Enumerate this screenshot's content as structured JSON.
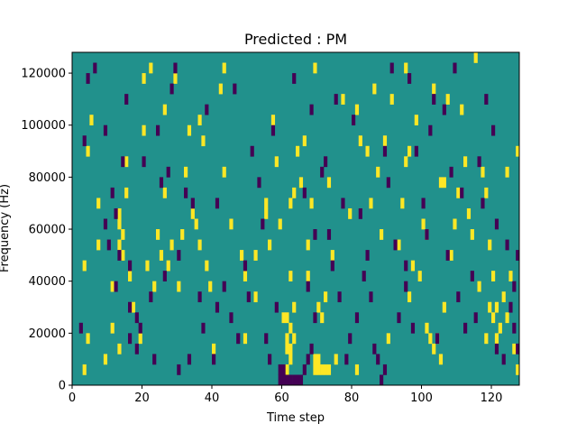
{
  "chart_data": {
    "type": "heatmap",
    "title": "Predicted : PM",
    "xlabel": "Time step",
    "ylabel": "Frequency (Hz)",
    "xlim": [
      0,
      128
    ],
    "ylim": [
      0,
      128000
    ],
    "xticks": [
      0,
      20,
      40,
      60,
      80,
      100,
      120
    ],
    "yticks": [
      0,
      20000,
      40000,
      60000,
      80000,
      100000,
      120000
    ],
    "xtick_labels": [
      "0",
      "20",
      "40",
      "60",
      "80",
      "100",
      "120"
    ],
    "ytick_labels": [
      "0",
      "20000",
      "40000",
      "60000",
      "80000",
      "100000",
      "120000"
    ],
    "n_time_steps": 128,
    "n_frequency_bins": 32,
    "bin_height_hz": 4000,
    "background_value": 0,
    "colormap": "viridis",
    "colors": {
      "low": "#440154",
      "mid": "#21918c",
      "high": "#fde725"
    },
    "high_cells": [
      [
        3,
        1
      ],
      [
        4,
        4
      ],
      [
        4,
        22
      ],
      [
        5,
        25
      ],
      [
        11,
        9
      ],
      [
        13,
        3
      ],
      [
        13,
        13
      ],
      [
        13,
        15
      ],
      [
        13,
        16
      ],
      [
        14,
        14
      ],
      [
        14,
        12
      ],
      [
        15,
        18
      ],
      [
        17,
        7
      ],
      [
        19,
        4
      ],
      [
        26,
        18
      ],
      [
        27,
        11
      ],
      [
        28,
        13
      ],
      [
        30,
        9
      ],
      [
        33,
        24
      ],
      [
        35,
        15
      ],
      [
        36,
        13
      ],
      [
        38,
        11
      ],
      [
        39,
        9
      ],
      [
        40,
        3
      ],
      [
        43,
        20
      ],
      [
        45,
        15
      ],
      [
        49,
        4
      ],
      [
        55,
        16
      ],
      [
        61,
        1
      ],
      [
        62,
        2
      ],
      [
        61,
        3
      ],
      [
        62,
        3
      ],
      [
        61,
        4
      ],
      [
        62,
        5
      ],
      [
        60,
        6
      ],
      [
        61,
        6
      ],
      [
        63,
        4
      ],
      [
        63,
        7
      ],
      [
        62,
        10
      ],
      [
        67,
        10
      ],
      [
        69,
        1
      ],
      [
        70,
        1
      ],
      [
        71,
        1
      ],
      [
        72,
        1
      ],
      [
        73,
        1
      ],
      [
        69,
        2
      ],
      [
        70,
        2
      ],
      [
        71,
        6
      ],
      [
        72,
        8
      ],
      [
        74,
        12
      ],
      [
        75,
        2
      ],
      [
        81,
        1
      ],
      [
        85,
        17
      ],
      [
        88,
        14
      ],
      [
        90,
        4
      ],
      [
        95,
        21
      ],
      [
        96,
        8
      ],
      [
        97,
        11
      ],
      [
        99,
        10
      ],
      [
        101,
        5
      ],
      [
        102,
        4
      ],
      [
        103,
        3
      ],
      [
        104,
        4
      ],
      [
        105,
        2
      ],
      [
        106,
        7
      ],
      [
        108,
        12
      ],
      [
        109,
        15
      ],
      [
        113,
        16
      ],
      [
        116,
        9
      ],
      [
        118,
        18
      ],
      [
        119,
        7
      ],
      [
        120,
        6
      ],
      [
        121,
        7
      ],
      [
        121,
        4
      ],
      [
        122,
        5
      ],
      [
        124,
        6
      ],
      [
        127,
        1
      ],
      [
        126,
        3
      ],
      [
        125,
        10
      ],
      [
        3,
        11
      ],
      [
        7,
        13
      ],
      [
        7,
        17
      ],
      [
        15,
        21
      ],
      [
        20,
        24
      ],
      [
        20,
        29
      ],
      [
        22,
        30
      ],
      [
        24,
        14
      ],
      [
        26,
        26
      ],
      [
        29,
        29
      ],
      [
        32,
        20
      ],
      [
        36,
        25
      ],
      [
        43,
        30
      ],
      [
        49,
        10
      ],
      [
        52,
        12
      ],
      [
        55,
        17
      ],
      [
        57,
        25
      ],
      [
        58,
        21
      ],
      [
        62,
        17
      ],
      [
        65,
        19
      ],
      [
        66,
        23
      ],
      [
        68,
        17
      ],
      [
        69,
        30
      ],
      [
        70,
        7
      ],
      [
        77,
        27
      ],
      [
        81,
        26
      ],
      [
        84,
        22
      ],
      [
        87,
        20
      ],
      [
        89,
        23
      ],
      [
        91,
        27
      ],
      [
        93,
        13
      ],
      [
        95,
        30
      ],
      [
        96,
        22
      ],
      [
        98,
        25
      ],
      [
        100,
        15
      ],
      [
        101,
        14
      ],
      [
        103,
        28
      ],
      [
        106,
        19
      ],
      [
        107,
        27
      ],
      [
        110,
        18
      ],
      [
        112,
        21
      ],
      [
        115,
        31
      ],
      [
        117,
        20
      ],
      [
        119,
        13
      ],
      [
        123,
        8
      ],
      [
        127,
        22
      ],
      [
        9,
        2
      ],
      [
        11,
        5
      ],
      [
        16,
        10
      ],
      [
        21,
        11
      ],
      [
        23,
        9
      ],
      [
        25,
        12
      ],
      [
        31,
        14
      ],
      [
        34,
        16
      ],
      [
        37,
        23
      ],
      [
        42,
        28
      ],
      [
        48,
        12
      ],
      [
        52,
        8
      ],
      [
        56,
        13
      ],
      [
        59,
        15
      ],
      [
        63,
        18
      ],
      [
        64,
        22
      ],
      [
        67,
        13
      ],
      [
        73,
        19
      ],
      [
        79,
        16
      ],
      [
        82,
        23
      ],
      [
        86,
        28
      ],
      [
        94,
        17
      ],
      [
        105,
        19
      ],
      [
        111,
        26
      ],
      [
        114,
        14
      ],
      [
        118,
        4
      ],
      [
        120,
        10
      ],
      [
        124,
        20
      ]
    ],
    "low_cells": [
      [
        4,
        29
      ],
      [
        9,
        24
      ],
      [
        11,
        18
      ],
      [
        12,
        9
      ],
      [
        12,
        16
      ],
      [
        14,
        21
      ],
      [
        16,
        4
      ],
      [
        16,
        7
      ],
      [
        16,
        11
      ],
      [
        18,
        6
      ],
      [
        19,
        5
      ],
      [
        22,
        8
      ],
      [
        23,
        2
      ],
      [
        25,
        19
      ],
      [
        27,
        20
      ],
      [
        29,
        30
      ],
      [
        33,
        2
      ],
      [
        36,
        8
      ],
      [
        37,
        5
      ],
      [
        40,
        2
      ],
      [
        41,
        7
      ],
      [
        41,
        17
      ],
      [
        43,
        9
      ],
      [
        47,
        4
      ],
      [
        49,
        11
      ],
      [
        50,
        8
      ],
      [
        54,
        15
      ],
      [
        56,
        2
      ],
      [
        59,
        0
      ],
      [
        60,
        0
      ],
      [
        61,
        0
      ],
      [
        62,
        0
      ],
      [
        63,
        0
      ],
      [
        64,
        0
      ],
      [
        65,
        0
      ],
      [
        59,
        1
      ],
      [
        60,
        1
      ],
      [
        66,
        1
      ],
      [
        67,
        2
      ],
      [
        68,
        3
      ],
      [
        67,
        9
      ],
      [
        69,
        6
      ],
      [
        73,
        14
      ],
      [
        76,
        8
      ],
      [
        77,
        17
      ],
      [
        78,
        2
      ],
      [
        81,
        6
      ],
      [
        83,
        10
      ],
      [
        84,
        12
      ],
      [
        86,
        3
      ],
      [
        87,
        2
      ],
      [
        88,
        0
      ],
      [
        89,
        1
      ],
      [
        89,
        22
      ],
      [
        92,
        13
      ],
      [
        93,
        6
      ],
      [
        97,
        5
      ],
      [
        100,
        17
      ],
      [
        101,
        14
      ],
      [
        102,
        24
      ],
      [
        106,
        26
      ],
      [
        108,
        20
      ],
      [
        110,
        8
      ],
      [
        111,
        18
      ],
      [
        112,
        5
      ],
      [
        115,
        6
      ],
      [
        117,
        17
      ],
      [
        121,
        3
      ],
      [
        123,
        2
      ],
      [
        125,
        7
      ],
      [
        126,
        5
      ],
      [
        127,
        3
      ],
      [
        126,
        9
      ],
      [
        127,
        12
      ],
      [
        9,
        15
      ],
      [
        13,
        12
      ],
      [
        20,
        21
      ],
      [
        24,
        24
      ],
      [
        28,
        28
      ],
      [
        32,
        18
      ],
      [
        38,
        26
      ],
      [
        46,
        28
      ],
      [
        51,
        22
      ],
      [
        57,
        24
      ],
      [
        63,
        29
      ],
      [
        69,
        14
      ],
      [
        72,
        21
      ],
      [
        75,
        27
      ],
      [
        80,
        25
      ],
      [
        82,
        16
      ],
      [
        91,
        30
      ],
      [
        95,
        11
      ],
      [
        98,
        22
      ],
      [
        103,
        27
      ],
      [
        107,
        12
      ],
      [
        114,
        10
      ],
      [
        118,
        27
      ],
      [
        121,
        15
      ],
      [
        3,
        23
      ],
      [
        6,
        30
      ],
      [
        10,
        13
      ],
      [
        18,
        3
      ],
      [
        26,
        10
      ],
      [
        30,
        12
      ],
      [
        34,
        17
      ],
      [
        45,
        6
      ],
      [
        53,
        19
      ],
      [
        58,
        7
      ],
      [
        66,
        18
      ],
      [
        71,
        20
      ],
      [
        74,
        11
      ],
      [
        85,
        8
      ],
      [
        90,
        19
      ],
      [
        96,
        29
      ],
      [
        104,
        4
      ],
      [
        109,
        30
      ],
      [
        116,
        21
      ],
      [
        120,
        24
      ],
      [
        124,
        13
      ],
      [
        2,
        5
      ],
      [
        15,
        27
      ],
      [
        30,
        1
      ],
      [
        55,
        4
      ],
      [
        68,
        26
      ],
      [
        79,
        4
      ],
      [
        95,
        9
      ]
    ]
  }
}
